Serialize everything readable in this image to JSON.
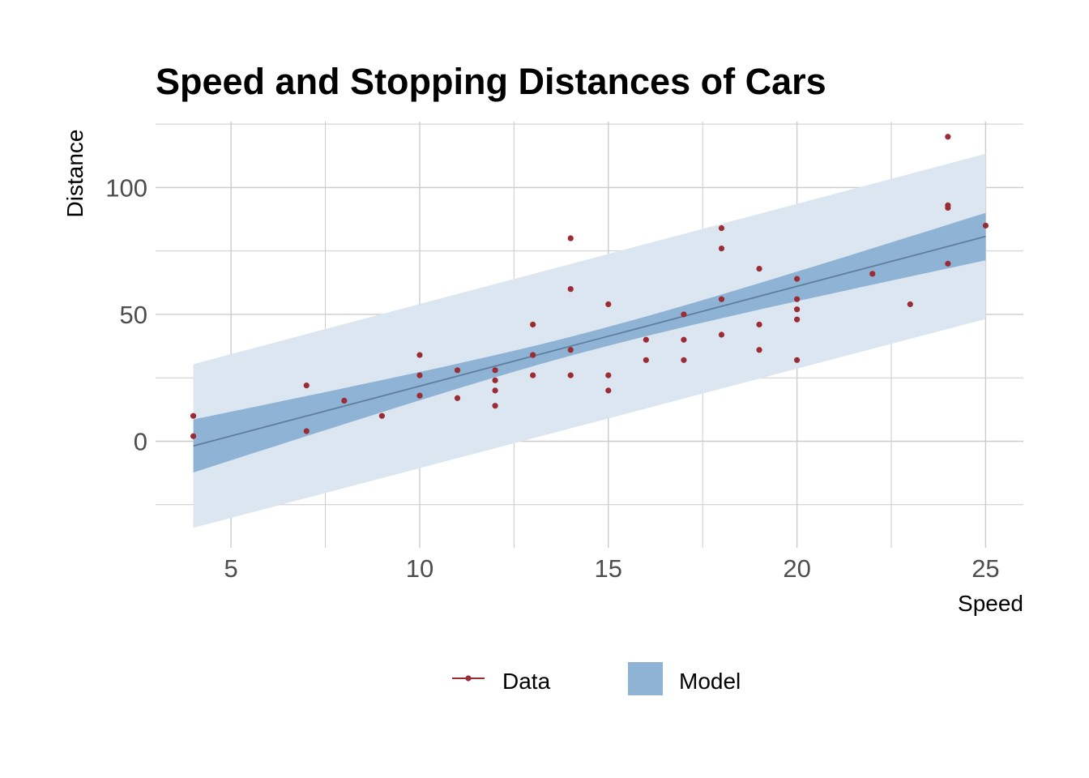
{
  "colors": {
    "data_point": "#9b2c36",
    "model_line": "#5f7f9c",
    "confidence_band": "#8fb3d5",
    "prediction_band": "#dbe6f1",
    "grid": "#cccccc"
  },
  "chart_data": {
    "type": "scatter",
    "title": "Speed and Stopping Distances of Cars",
    "xlabel": "Speed",
    "ylabel": "Distance",
    "xlim": [
      3,
      26
    ],
    "ylim": [
      -42,
      126
    ],
    "xticks": [
      5,
      10,
      15,
      20,
      25
    ],
    "yticks": [
      0,
      50,
      100
    ],
    "grid": true,
    "legend_position": "bottom",
    "legend": [
      {
        "label": "Data",
        "kind": "line-point"
      },
      {
        "label": "Model",
        "kind": "band"
      }
    ],
    "series": [
      {
        "name": "Data",
        "x": [
          4,
          4,
          7,
          7,
          8,
          9,
          10,
          10,
          10,
          11,
          11,
          12,
          12,
          12,
          12,
          13,
          13,
          13,
          13,
          14,
          14,
          14,
          14,
          15,
          15,
          15,
          16,
          16,
          17,
          17,
          17,
          18,
          18,
          18,
          18,
          19,
          19,
          19,
          20,
          20,
          20,
          20,
          20,
          22,
          23,
          24,
          24,
          24,
          24,
          25
        ],
        "y": [
          2,
          10,
          4,
          22,
          16,
          10,
          18,
          26,
          34,
          17,
          28,
          14,
          20,
          24,
          28,
          26,
          34,
          34,
          46,
          26,
          36,
          60,
          80,
          20,
          26,
          54,
          32,
          40,
          32,
          40,
          50,
          42,
          56,
          76,
          84,
          36,
          46,
          68,
          32,
          48,
          52,
          56,
          64,
          66,
          54,
          70,
          92,
          93,
          120,
          85
        ]
      },
      {
        "name": "Model",
        "fit": {
          "intercept": -17.58,
          "slope": 3.93
        },
        "x": [
          4,
          25
        ],
        "y": [
          -1.85,
          80.73
        ],
        "confidence_band": {
          "lower": [
            -12.3,
            71.4
          ],
          "upper": [
            8.6,
            90.1
          ]
        },
        "prediction_band": {
          "lower": [
            -34.1,
            48.2
          ],
          "upper": [
            30.4,
            113.3
          ]
        }
      }
    ]
  }
}
